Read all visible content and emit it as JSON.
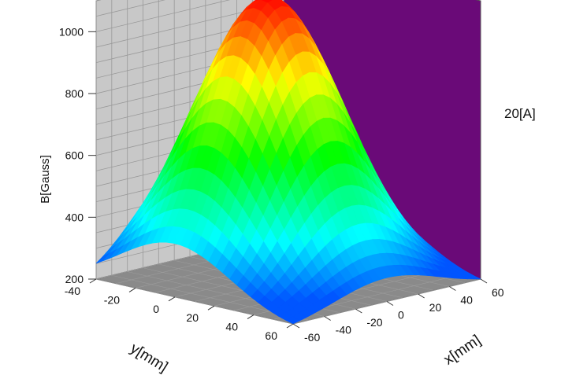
{
  "chart_data": {
    "type": "surface3d",
    "annotation": "20[A]",
    "xlabel": "x[mm]",
    "ylabel": "y[mm]",
    "zlabel": "B[Gauss]",
    "xlim": [
      -60,
      60
    ],
    "ylim": [
      -40,
      60
    ],
    "zlim": [
      200,
      1100
    ],
    "x_ticks": [
      -60,
      -40,
      -20,
      0,
      20,
      40,
      60
    ],
    "y_ticks": [
      -40,
      -20,
      0,
      20,
      40,
      60
    ],
    "z_ticks": [
      200,
      400,
      600,
      800,
      1000
    ],
    "peak": {
      "x": 0,
      "y": 0,
      "B": 1100
    },
    "corners": [
      {
        "x": -60,
        "y": -40,
        "B": 270
      },
      {
        "x": 60,
        "y": -40,
        "B": 230
      },
      {
        "x": 60,
        "y": 60,
        "B": 270
      },
      {
        "x": -60,
        "y": 60,
        "B": 270
      }
    ],
    "edge_midpoints": [
      {
        "x": 0,
        "y": -40,
        "B": 460
      },
      {
        "x": -60,
        "y": 0,
        "B": 460
      }
    ],
    "colormap": "rainbow (blue low → red high)",
    "grid": true,
    "back_wall_colors": {
      "left": "#c8c8c8",
      "right": "#6a0a78",
      "floor": "#8a8a8a"
    }
  }
}
